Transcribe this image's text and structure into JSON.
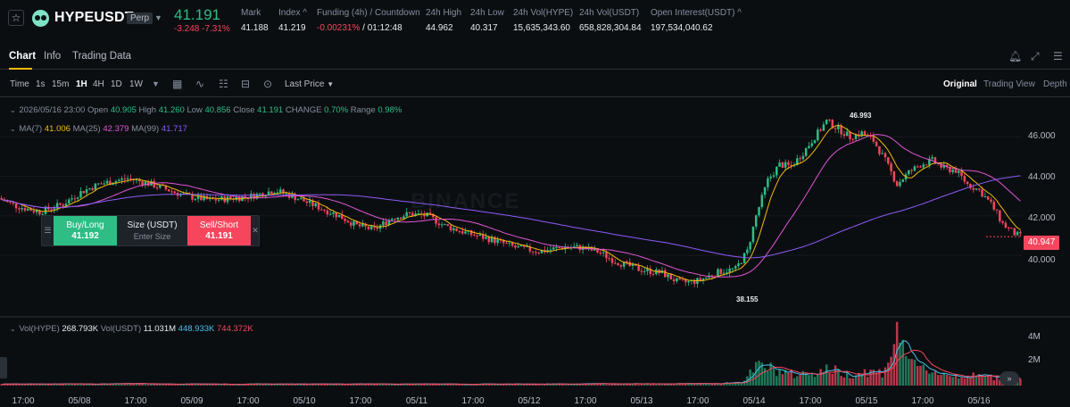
{
  "header": {
    "symbol": "HYPEUSDT",
    "contract_type": "Perp",
    "last_price": "41.191",
    "change": "-3.248 -7.31%",
    "stats": [
      {
        "label": "Mark",
        "value": "41.188"
      },
      {
        "label": "Index ^",
        "value": "41.219"
      },
      {
        "label": "Funding (4h) / Countdown",
        "value": "-0.00231%",
        "value2": " / 01:12:48"
      },
      {
        "label": "24h High",
        "value": "44.962"
      },
      {
        "label": "24h Low",
        "value": "40.317"
      },
      {
        "label": "24h Vol(HYPE)",
        "value": "15,635,343.60"
      },
      {
        "label": "24h Vol(USDT)",
        "value": "658,828,304.84"
      },
      {
        "label": "Open Interest(USDT) ^",
        "value": "197,534,040.62"
      }
    ]
  },
  "tabs": [
    "Chart",
    "Info",
    "Trading Data"
  ],
  "toolbar": {
    "timeframes": [
      "Time",
      "1s",
      "15m",
      "1H",
      "4H",
      "1D",
      "1W"
    ],
    "active_timeframe": "1H",
    "price_type": "Last Price",
    "views": [
      "Original",
      "Trading View",
      "Depth"
    ]
  },
  "legend": {
    "date": "2026/05/16 23:00",
    "open_label": "Open",
    "open": "40.905",
    "high_label": "High",
    "high": "41.260",
    "low_label": "Low",
    "low": "40.856",
    "close_label": "Close",
    "close": "41.191",
    "change_label": "CHANGE",
    "change": "0.70%",
    "range_label": "Range",
    "range": "0.98%",
    "ma7_label": "MA(7)",
    "ma7": "41.006",
    "ma25_label": "MA(25)",
    "ma25": "42.379",
    "ma99_label": "MA(99)",
    "ma99": "41.717",
    "vol_label": "Vol(HYPE)",
    "vol": "268.793K",
    "volusdt_label": "Vol(USDT)",
    "volusdt": "11.031M",
    "vol_ma1": "448.933K",
    "vol_ma2": "744.372K"
  },
  "order_widget": {
    "buy_label": "Buy/Long",
    "buy_price": "41.192",
    "size_label": "Size (USDT)",
    "size_placeholder": "Enter Size",
    "sell_label": "Sell/Short",
    "sell_price": "41.191"
  },
  "watermark": "BINANCE",
  "current_price_tag": "40.947",
  "max_label": "46.993",
  "min_label": "38.155",
  "scroll_label": "»",
  "chart_data": {
    "type": "candlestick",
    "price_ticks": [
      "46.000",
      "44.000",
      "42.000",
      "40.000"
    ],
    "volume_ticks": [
      "4M",
      "2M"
    ],
    "x_ticks": [
      "17:00",
      "05/08",
      "17:00",
      "05/09",
      "17:00",
      "05/10",
      "17:00",
      "05/11",
      "17:00",
      "05/12",
      "17:00",
      "05/13",
      "17:00",
      "05/14",
      "17:00",
      "05/15",
      "17:00",
      "05/16"
    ],
    "anchors": [
      [
        0,
        42.9
      ],
      [
        6,
        42.5
      ],
      [
        14,
        42.2
      ],
      [
        22,
        42.6
      ],
      [
        28,
        43.2
      ],
      [
        34,
        43.6
      ],
      [
        44,
        43.9
      ],
      [
        52,
        43.6
      ],
      [
        58,
        43.3
      ],
      [
        64,
        43.0
      ],
      [
        72,
        42.8
      ],
      [
        80,
        42.9
      ],
      [
        86,
        43.0
      ],
      [
        94,
        43.3
      ],
      [
        100,
        43.0
      ],
      [
        108,
        42.5
      ],
      [
        116,
        42.0
      ],
      [
        122,
        41.5
      ],
      [
        128,
        41.3
      ],
      [
        134,
        41.9
      ],
      [
        140,
        42.1
      ],
      [
        146,
        42.0
      ],
      [
        152,
        41.5
      ],
      [
        160,
        41.1
      ],
      [
        168,
        40.8
      ],
      [
        176,
        40.4
      ],
      [
        184,
        40.2
      ],
      [
        192,
        40.4
      ],
      [
        198,
        40.4
      ],
      [
        204,
        40.2
      ],
      [
        210,
        39.7
      ],
      [
        218,
        39.3
      ],
      [
        226,
        39.1
      ],
      [
        232,
        38.6
      ],
      [
        238,
        38.7
      ],
      [
        246,
        39.2
      ],
      [
        251,
        39.3
      ],
      [
        255,
        40.2
      ],
      [
        258,
        42.0
      ],
      [
        262,
        43.8
      ],
      [
        266,
        44.6
      ],
      [
        270,
        44.5
      ],
      [
        274,
        45.2
      ],
      [
        278,
        46.0
      ],
      [
        282,
        46.8
      ],
      [
        286,
        46.4
      ],
      [
        290,
        46.0
      ],
      [
        294,
        46.2
      ],
      [
        298,
        45.8
      ],
      [
        302,
        44.8
      ],
      [
        306,
        43.6
      ],
      [
        310,
        44.2
      ],
      [
        314,
        44.6
      ],
      [
        318,
        44.8
      ],
      [
        322,
        44.4
      ],
      [
        326,
        44.3
      ],
      [
        330,
        43.6
      ],
      [
        334,
        43.3
      ],
      [
        338,
        42.6
      ],
      [
        342,
        41.6
      ],
      [
        346,
        41.1
      ],
      [
        348,
        40.95
      ]
    ],
    "volume_anchors": [
      [
        0,
        0.12
      ],
      [
        40,
        0.15
      ],
      [
        80,
        0.12
      ],
      [
        120,
        0.14
      ],
      [
        160,
        0.12
      ],
      [
        200,
        0.14
      ],
      [
        240,
        0.16
      ],
      [
        252,
        0.3
      ],
      [
        258,
        1.7
      ],
      [
        264,
        1.3
      ],
      [
        270,
        0.9
      ],
      [
        276,
        1.1
      ],
      [
        282,
        1.4
      ],
      [
        288,
        0.9
      ],
      [
        294,
        1.2
      ],
      [
        300,
        1.1
      ],
      [
        306,
        4.6
      ],
      [
        310,
        1.6
      ],
      [
        316,
        1.3
      ],
      [
        322,
        0.9
      ],
      [
        330,
        0.8
      ],
      [
        340,
        0.7
      ],
      [
        348,
        0.6
      ]
    ],
    "price_range": [
      37.2,
      47.6
    ],
    "volume_range": [
      0,
      5.0
    ],
    "candle_count": 348
  }
}
